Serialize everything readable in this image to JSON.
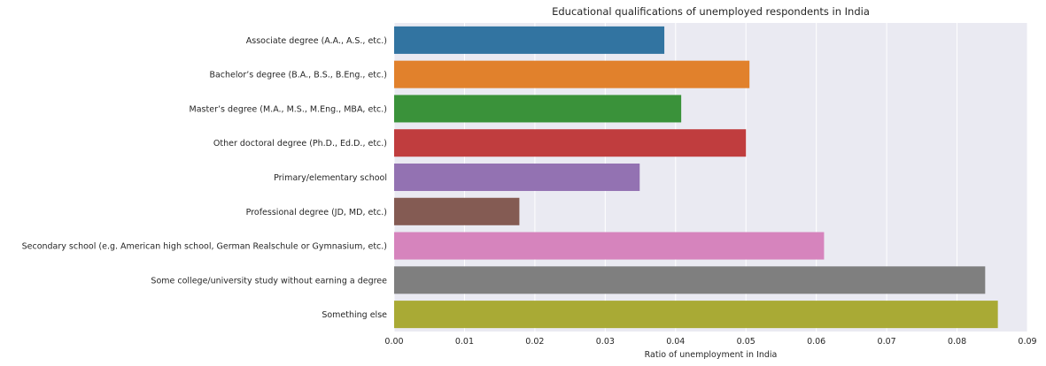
{
  "chart_data": {
    "type": "bar",
    "orientation": "horizontal",
    "title": "Educational qualifications of unemployed respondents in India",
    "xlabel": "Ratio of unemployment in India",
    "ylabel": "",
    "xlim": [
      0,
      0.09
    ],
    "grid": true,
    "xticks": [
      "0.00",
      "0.01",
      "0.02",
      "0.03",
      "0.04",
      "0.05",
      "0.06",
      "0.07",
      "0.08",
      "0.09"
    ],
    "categories": [
      "Associate degree (A.A., A.S., etc.)",
      "Bachelor’s degree (B.A., B.S., B.Eng., etc.)",
      "Master’s degree (M.A., M.S., M.Eng., MBA, etc.)",
      "Other doctoral degree (Ph.D., Ed.D., etc.)",
      "Primary/elementary school",
      "Professional degree (JD, MD, etc.)",
      "Secondary school (e.g. American high school, German Realschule or Gymnasium, etc.)",
      "Some college/university study without earning a degree",
      "Something else"
    ],
    "values": [
      0.0384,
      0.0505,
      0.0408,
      0.05,
      0.0349,
      0.0178,
      0.0611,
      0.084,
      0.0858
    ],
    "colors": [
      "#3274a1",
      "#e1812c",
      "#3a923a",
      "#c03d3e",
      "#9372b2",
      "#845b53",
      "#d684bd",
      "#7f7f7f",
      "#a9aa35"
    ],
    "background_color": "#eaeaf2",
    "grid_color": "#ffffff"
  }
}
